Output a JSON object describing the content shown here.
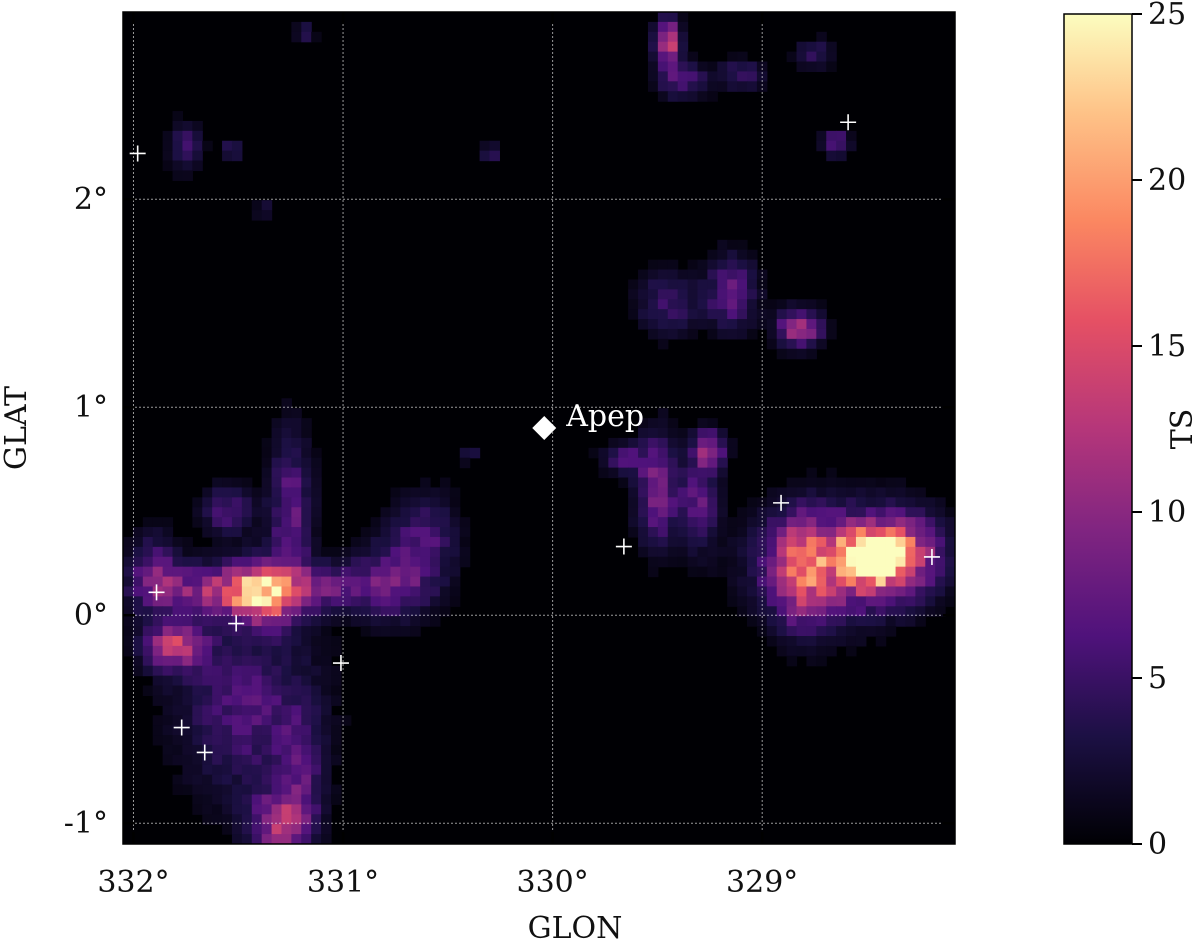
{
  "chart_data": {
    "type": "heatmap",
    "title": "",
    "xlabel": "GLON",
    "ylabel": "GLAT",
    "colorbar_label": "TS",
    "colormap": "magma",
    "xlim": [
      332.05,
      328.08
    ],
    "ylim": [
      -1.1,
      2.9
    ],
    "clim": [
      0,
      25
    ],
    "x_ticks": [
      332,
      331,
      330,
      329
    ],
    "x_tick_labels": [
      "332°",
      "331°",
      "330°",
      "329°"
    ],
    "y_ticks": [
      2,
      1,
      0,
      -1
    ],
    "y_tick_labels": [
      "2°",
      "1°",
      "0°",
      "-1°"
    ],
    "colorbar_ticks": [
      0,
      5,
      10,
      15,
      20,
      25
    ],
    "colorbar_tick_labels": [
      "0",
      "5",
      "10",
      "15",
      "20",
      "25"
    ],
    "grid": true,
    "marked_source": {
      "label": "Apep",
      "glon": 330.04,
      "glat": 0.9,
      "marker": "diamond"
    },
    "crosses": [
      {
        "glon": 331.98,
        "glat": 2.22
      },
      {
        "glon": 328.59,
        "glat": 2.37
      },
      {
        "glon": 328.91,
        "glat": 0.54
      },
      {
        "glon": 329.66,
        "glat": 0.33
      },
      {
        "glon": 328.19,
        "glat": 0.28
      },
      {
        "glon": 331.89,
        "glat": 0.11
      },
      {
        "glon": 331.51,
        "glat": -0.04
      },
      {
        "glon": 331.01,
        "glat": -0.23
      },
      {
        "glon": 331.77,
        "glat": -0.54
      },
      {
        "glon": 331.66,
        "glat": -0.66
      }
    ],
    "ts_peaks": [
      {
        "glon": 328.47,
        "glat": 0.28,
        "ts": 25,
        "sx": 0.1,
        "sy": 0.08
      },
      {
        "glon": 328.65,
        "glat": 0.25,
        "ts": 13,
        "sx": 0.23,
        "sy": 0.17
      },
      {
        "glon": 328.32,
        "glat": 0.3,
        "ts": 10,
        "sx": 0.13,
        "sy": 0.13
      },
      {
        "glon": 328.82,
        "glat": 0.2,
        "ts": 9,
        "sx": 0.09,
        "sy": 0.18
      },
      {
        "glon": 331.38,
        "glat": 0.1,
        "ts": 14,
        "sx": 0.1,
        "sy": 0.1
      },
      {
        "glon": 331.6,
        "glat": 0.12,
        "ts": 9,
        "sx": 0.22,
        "sy": 0.08
      },
      {
        "glon": 331.15,
        "glat": 0.13,
        "ts": 7,
        "sx": 0.28,
        "sy": 0.08
      },
      {
        "glon": 330.75,
        "glat": 0.18,
        "ts": 6,
        "sx": 0.12,
        "sy": 0.14
      },
      {
        "glon": 330.6,
        "glat": 0.38,
        "ts": 5,
        "sx": 0.1,
        "sy": 0.14
      },
      {
        "glon": 331.8,
        "glat": -0.15,
        "ts": 12,
        "sx": 0.1,
        "sy": 0.08
      },
      {
        "glon": 331.9,
        "glat": 0.2,
        "ts": 7,
        "sx": 0.08,
        "sy": 0.12
      },
      {
        "glon": 331.25,
        "glat": 0.5,
        "ts": 7,
        "sx": 0.07,
        "sy": 0.25
      },
      {
        "glon": 331.55,
        "glat": 0.5,
        "ts": 6,
        "sx": 0.08,
        "sy": 0.08
      },
      {
        "glon": 331.45,
        "glat": -0.45,
        "ts": 6,
        "sx": 0.22,
        "sy": 0.28
      },
      {
        "glon": 331.3,
        "glat": -1.0,
        "ts": 11,
        "sx": 0.1,
        "sy": 0.1
      },
      {
        "glon": 331.2,
        "glat": -0.75,
        "ts": 5,
        "sx": 0.07,
        "sy": 0.18
      },
      {
        "glon": 329.5,
        "glat": 0.6,
        "ts": 8,
        "sx": 0.07,
        "sy": 0.18
      },
      {
        "glon": 329.25,
        "glat": 0.8,
        "ts": 10,
        "sx": 0.05,
        "sy": 0.06
      },
      {
        "glon": 329.3,
        "glat": 0.55,
        "ts": 7,
        "sx": 0.06,
        "sy": 0.15
      },
      {
        "glon": 329.65,
        "glat": 0.75,
        "ts": 5,
        "sx": 0.08,
        "sy": 0.05
      },
      {
        "glon": 328.82,
        "glat": 1.38,
        "ts": 12,
        "sx": 0.07,
        "sy": 0.06
      },
      {
        "glon": 329.15,
        "glat": 1.55,
        "ts": 7,
        "sx": 0.08,
        "sy": 0.12
      },
      {
        "glon": 329.45,
        "glat": 1.5,
        "ts": 5,
        "sx": 0.1,
        "sy": 0.1
      },
      {
        "glon": 329.45,
        "glat": 2.75,
        "ts": 13,
        "sx": 0.04,
        "sy": 0.08
      },
      {
        "glon": 329.38,
        "glat": 2.57,
        "ts": 6,
        "sx": 0.08,
        "sy": 0.06
      },
      {
        "glon": 329.1,
        "glat": 2.6,
        "ts": 5,
        "sx": 0.07,
        "sy": 0.05
      },
      {
        "glon": 328.65,
        "glat": 2.27,
        "ts": 8,
        "sx": 0.04,
        "sy": 0.04
      },
      {
        "glon": 328.75,
        "glat": 2.7,
        "ts": 4,
        "sx": 0.06,
        "sy": 0.05
      },
      {
        "glon": 331.75,
        "glat": 2.25,
        "ts": 5,
        "sx": 0.05,
        "sy": 0.08
      },
      {
        "glon": 331.53,
        "glat": 2.24,
        "ts": 6,
        "sx": 0.03,
        "sy": 0.03
      },
      {
        "glon": 331.18,
        "glat": 2.8,
        "ts": 4,
        "sx": 0.03,
        "sy": 0.03
      },
      {
        "glon": 330.3,
        "glat": 2.22,
        "ts": 5,
        "sx": 0.03,
        "sy": 0.03
      },
      {
        "glon": 330.4,
        "glat": 0.78,
        "ts": 4,
        "sx": 0.03,
        "sy": 0.03
      },
      {
        "glon": 331.38,
        "glat": 1.95,
        "ts": 3,
        "sx": 0.03,
        "sy": 0.03
      }
    ]
  }
}
